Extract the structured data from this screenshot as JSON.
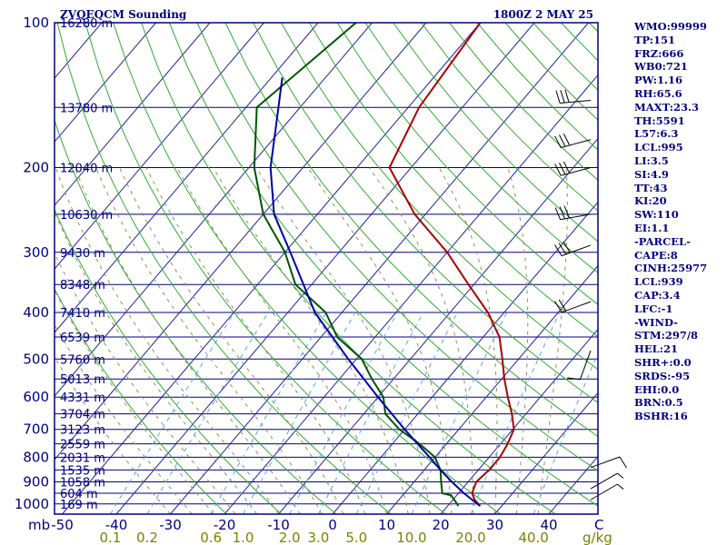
{
  "header": {
    "title": "ZVQEQCM Sounding",
    "timestamp": "1800Z  2 MAY 25"
  },
  "chart_data": {
    "type": "line",
    "title": "ZVQEQCM Sounding",
    "subtitle": "1800Z  2 MAY 25",
    "ylabel": "mb",
    "xlabel": "C",
    "secondary_xlabel": "g/kg",
    "ylim": [
      1050,
      100
    ],
    "xlim": [
      -50,
      50
    ],
    "y_scale": "log",
    "grid": true,
    "pressure_ticks": [
      {
        "value": 100,
        "label": "100"
      },
      {
        "value": 200,
        "label": "200"
      },
      {
        "value": 300,
        "label": "300"
      },
      {
        "value": 400,
        "label": "400"
      },
      {
        "value": 500,
        "label": "500"
      },
      {
        "value": 600,
        "label": "600"
      },
      {
        "value": 700,
        "label": "700"
      },
      {
        "value": 800,
        "label": "800"
      },
      {
        "value": 900,
        "label": "900"
      },
      {
        "value": 1000,
        "label": "1000"
      }
    ],
    "temperature_ticks": [
      {
        "value": -50,
        "label": "-50"
      },
      {
        "value": -40,
        "label": "-40"
      },
      {
        "value": -30,
        "label": "-30"
      },
      {
        "value": -20,
        "label": "-20"
      },
      {
        "value": -10,
        "label": "-10"
      },
      {
        "value": 0,
        "label": "0"
      },
      {
        "value": 10,
        "label": "10"
      },
      {
        "value": 20,
        "label": "20"
      },
      {
        "value": 30,
        "label": "30"
      },
      {
        "value": 40,
        "label": "40"
      }
    ],
    "mixing_ratio_ticks": [
      {
        "value": 0.1,
        "label": "0.1"
      },
      {
        "value": 0.2,
        "label": "0.2"
      },
      {
        "value": 0.6,
        "label": "0.6"
      },
      {
        "value": 1.0,
        "label": "1.0"
      },
      {
        "value": 2.0,
        "label": "2.0"
      },
      {
        "value": 3.0,
        "label": "3.0"
      },
      {
        "value": 5.0,
        "label": "5.0"
      },
      {
        "value": 10.0,
        "label": "10.0"
      },
      {
        "value": 20.0,
        "label": "20.0"
      },
      {
        "value": 40.0,
        "label": "40.0"
      }
    ],
    "height_labels": [
      {
        "p": 100,
        "label": "16280 m"
      },
      {
        "p": 150,
        "label": "13780 m"
      },
      {
        "p": 200,
        "label": "12040 m"
      },
      {
        "p": 250,
        "label": "10630 m"
      },
      {
        "p": 300,
        "label": "9430 m"
      },
      {
        "p": 350,
        "label": "8348 m"
      },
      {
        "p": 400,
        "label": "7410 m"
      },
      {
        "p": 450,
        "label": "6539 m"
      },
      {
        "p": 500,
        "label": "5760 m"
      },
      {
        "p": 550,
        "label": "5013 m"
      },
      {
        "p": 600,
        "label": "4331 m"
      },
      {
        "p": 650,
        "label": "3704 m"
      },
      {
        "p": 700,
        "label": "3123 m"
      },
      {
        "p": 750,
        "label": "2559 m"
      },
      {
        "p": 800,
        "label": "2031 m"
      },
      {
        "p": 850,
        "label": "1535 m"
      },
      {
        "p": 900,
        "label": "1058 m"
      },
      {
        "p": 950,
        "label": "604 m"
      },
      {
        "p": 1000,
        "label": "169 m"
      }
    ],
    "series": [
      {
        "key": "temperature",
        "color": "#aa0000",
        "points": [
          [
            1010,
            26
          ],
          [
            980,
            24
          ],
          [
            950,
            22.5
          ],
          [
            900,
            21.5
          ],
          [
            850,
            22
          ],
          [
            800,
            22
          ],
          [
            750,
            21.3
          ],
          [
            700,
            20.2
          ],
          [
            650,
            17.4
          ],
          [
            600,
            14
          ],
          [
            550,
            10.5
          ],
          [
            500,
            7
          ],
          [
            450,
            3
          ],
          [
            400,
            -3
          ],
          [
            350,
            -11
          ],
          [
            300,
            -20
          ],
          [
            250,
            -32
          ],
          [
            200,
            -44
          ],
          [
            150,
            -48
          ],
          [
            100,
            -50
          ]
        ]
      },
      {
        "key": "dewpoint",
        "color": "#005500",
        "points": [
          [
            1010,
            22
          ],
          [
            960,
            19
          ],
          [
            950,
            17
          ],
          [
            900,
            15
          ],
          [
            850,
            13
          ],
          [
            800,
            10
          ],
          [
            750,
            5
          ],
          [
            700,
            -1
          ],
          [
            650,
            -6
          ],
          [
            600,
            -9
          ],
          [
            550,
            -14
          ],
          [
            500,
            -19
          ],
          [
            450,
            -27
          ],
          [
            400,
            -33
          ],
          [
            350,
            -43
          ],
          [
            300,
            -50
          ],
          [
            250,
            -60
          ],
          [
            200,
            -69
          ],
          [
            150,
            -78
          ],
          [
            100,
            -73
          ]
        ]
      },
      {
        "key": "parcel",
        "color": "#0000aa",
        "points": [
          [
            1010,
            26
          ],
          [
            950,
            21
          ],
          [
            900,
            17
          ],
          [
            850,
            13
          ],
          [
            800,
            9
          ],
          [
            700,
            0
          ],
          [
            600,
            -10
          ],
          [
            500,
            -21.5
          ],
          [
            400,
            -35
          ],
          [
            300,
            -49
          ],
          [
            250,
            -58
          ],
          [
            200,
            -66
          ],
          [
            150,
            -74
          ],
          [
            130,
            -78
          ]
        ]
      }
    ],
    "wind_barbs": [
      {
        "p": 145,
        "speed_kt": 30,
        "direction_deg": 265
      },
      {
        "p": 175,
        "speed_kt": 30,
        "direction_deg": 255
      },
      {
        "p": 200,
        "speed_kt": 30,
        "direction_deg": 255
      },
      {
        "p": 250,
        "speed_kt": 30,
        "direction_deg": 260
      },
      {
        "p": 290,
        "speed_kt": 30,
        "direction_deg": 250
      },
      {
        "p": 380,
        "speed_kt": 20,
        "direction_deg": 250
      },
      {
        "p": 480,
        "speed_kt": 10,
        "direction_deg": 200
      },
      {
        "p": 840,
        "speed_kt": 10,
        "direction_deg": 70
      },
      {
        "p": 930,
        "speed_kt": 5,
        "direction_deg": 60
      },
      {
        "p": 980,
        "speed_kt": 5,
        "direction_deg": 60
      }
    ]
  },
  "stats": [
    "WMO:99999",
    "TP:151",
    "FRZ:666",
    "WB0:721",
    "PW:1.16",
    "RH:65.6",
    "MAXT:23.3",
    "TH:5591",
    "L57:6.3",
    "LCL:995",
    "LI:3.5",
    "SI:4.9",
    "TT:43",
    "KI:20",
    "SW:110",
    "EI:1.1",
    "-PARCEL-",
    "CAPE:8",
    "CINH:25977",
    "LCL:939",
    "CAP:3.4",
    "LFC:-1",
    "-WIND-",
    "STM:297/8",
    "HEL:21",
    "SHR+:0.0",
    "SRDS:-95",
    "EHI:0.0",
    "BRN:0.5",
    "BSHR:16"
  ],
  "colors": {
    "frame": "#000080",
    "isobar": "#000080",
    "isotherm": "#2020a0",
    "dry_adiabat": "#33aa33",
    "moist_adiabat": "#909060",
    "mixing_ratio": "#5aa8d8",
    "temperature": "#aa0000",
    "dewpoint": "#005500",
    "parcel": "#0000aa",
    "wind_barb": "#000000"
  }
}
